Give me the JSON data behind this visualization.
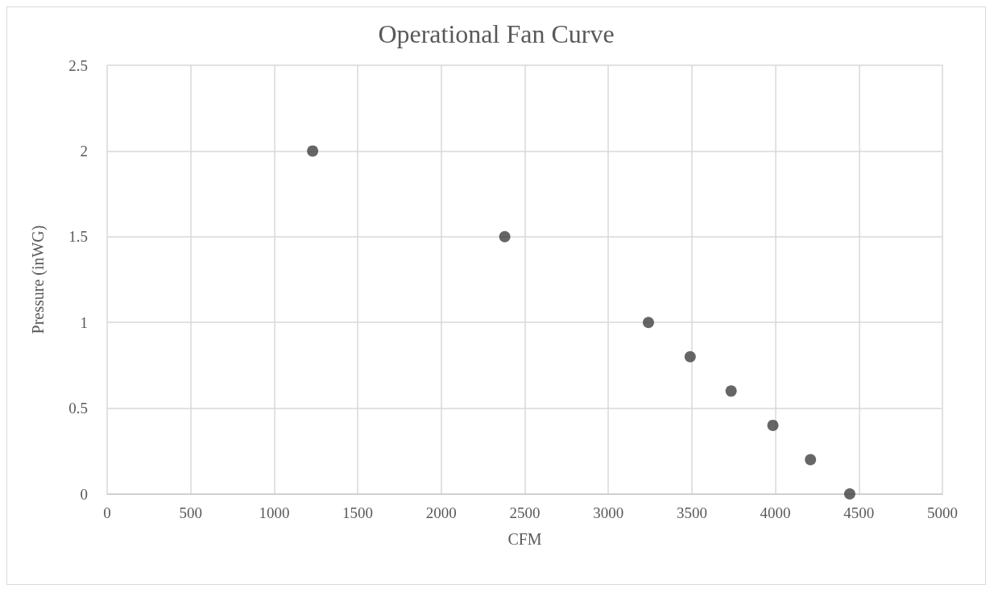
{
  "chart_data": {
    "type": "scatter",
    "title": "Operational Fan Curve",
    "xlabel": "CFM",
    "ylabel": "Pressure (inWG)",
    "x": [
      1230,
      2380,
      3240,
      3490,
      3735,
      3985,
      4210,
      4445
    ],
    "series": [
      {
        "color": "#404040",
        "values": [
          2,
          1.5,
          1,
          0.8,
          0.6,
          0.4,
          0.2,
          0
        ]
      }
    ],
    "xlim": [
      0,
      5000
    ],
    "xticks": [
      0,
      500,
      1000,
      1500,
      2000,
      2500,
      3000,
      3500,
      4000,
      4500,
      5000
    ],
    "ylim": [
      0,
      2.5
    ],
    "yticks": [
      0,
      0.5,
      1,
      1.5,
      2,
      2.5
    ],
    "grid": true,
    "marker": "circle"
  }
}
